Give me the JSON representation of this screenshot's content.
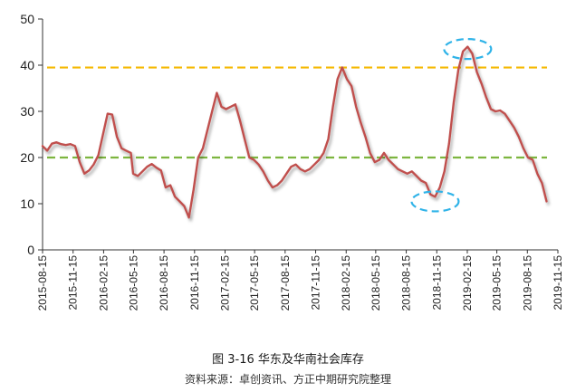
{
  "caption": {
    "title": "图 3-16 华东及华南社会库存",
    "source": "资料来源：卓创资讯、方正中期研究院整理"
  },
  "colors": {
    "series_line": "#c0504d",
    "ref_line_high": "#f5b800",
    "ref_line_low": "#7db53f",
    "highlight_ellipse": "#2fb3e8",
    "axis": "#333333"
  },
  "chart_data": {
    "type": "line",
    "title": "",
    "xlabel": "",
    "ylabel": "",
    "ylim": [
      0,
      50
    ],
    "y_ticks": [
      0,
      10,
      20,
      30,
      40,
      50
    ],
    "grid": false,
    "legend": "none",
    "x_tick_labels": [
      "2015-08-15",
      "2015-11-15",
      "2016-02-15",
      "2016-05-15",
      "2016-08-15",
      "2016-11-15",
      "2017-02-15",
      "2017-05-15",
      "2017-08-15",
      "2017-11-15",
      "2018-02-15",
      "2018-05-15",
      "2018-08-15",
      "2018-11-15",
      "2019-02-15",
      "2019-05-15",
      "2019-08-15",
      "2019-11-15"
    ],
    "x_start": "2015-08-15",
    "x_end": "2019-11-15",
    "series": [
      {
        "points": [
          [
            "2015-08-15",
            22.5
          ],
          [
            "2015-08-29",
            21.5
          ],
          [
            "2015-09-12",
            23.0
          ],
          [
            "2015-09-26",
            23.3
          ],
          [
            "2015-10-10",
            22.9
          ],
          [
            "2015-10-24",
            22.7
          ],
          [
            "2015-11-07",
            22.9
          ],
          [
            "2015-11-21",
            22.5
          ],
          [
            "2015-12-05",
            19.0
          ],
          [
            "2015-12-19",
            16.5
          ],
          [
            "2016-01-02",
            17.2
          ],
          [
            "2016-01-16",
            18.5
          ],
          [
            "2016-01-30",
            20.5
          ],
          [
            "2016-02-13",
            25.0
          ],
          [
            "2016-02-27",
            29.5
          ],
          [
            "2016-03-12",
            29.3
          ],
          [
            "2016-03-26",
            24.5
          ],
          [
            "2016-04-09",
            22.0
          ],
          [
            "2016-04-23",
            21.5
          ],
          [
            "2016-05-07",
            21.0
          ],
          [
            "2016-05-14",
            16.5
          ],
          [
            "2016-05-28",
            16.0
          ],
          [
            "2016-06-11",
            17.0
          ],
          [
            "2016-06-25",
            18.0
          ],
          [
            "2016-07-09",
            18.6
          ],
          [
            "2016-07-23",
            17.8
          ],
          [
            "2016-08-06",
            17.2
          ],
          [
            "2016-08-20",
            13.5
          ],
          [
            "2016-09-03",
            14.0
          ],
          [
            "2016-09-17",
            11.5
          ],
          [
            "2016-10-01",
            10.5
          ],
          [
            "2016-10-15",
            9.5
          ],
          [
            "2016-10-29",
            7.0
          ],
          [
            "2016-11-12",
            13.0
          ],
          [
            "2016-11-26",
            20.0
          ],
          [
            "2016-12-10",
            22.0
          ],
          [
            "2016-12-24",
            26.0
          ],
          [
            "2017-01-07",
            30.0
          ],
          [
            "2017-01-21",
            34.0
          ],
          [
            "2017-02-04",
            31.0
          ],
          [
            "2017-02-18",
            30.5
          ],
          [
            "2017-03-04",
            31.0
          ],
          [
            "2017-03-18",
            31.5
          ],
          [
            "2017-04-01",
            28.0
          ],
          [
            "2017-04-15",
            24.0
          ],
          [
            "2017-04-29",
            20.0
          ],
          [
            "2017-05-13",
            19.5
          ],
          [
            "2017-05-27",
            18.5
          ],
          [
            "2017-06-10",
            17.0
          ],
          [
            "2017-06-24",
            15.0
          ],
          [
            "2017-07-08",
            13.5
          ],
          [
            "2017-07-22",
            14.0
          ],
          [
            "2017-08-05",
            15.0
          ],
          [
            "2017-08-19",
            16.5
          ],
          [
            "2017-09-02",
            18.0
          ],
          [
            "2017-09-16",
            18.5
          ],
          [
            "2017-09-30",
            17.5
          ],
          [
            "2017-10-14",
            17.0
          ],
          [
            "2017-10-28",
            17.5
          ],
          [
            "2017-11-11",
            18.5
          ],
          [
            "2017-11-25",
            19.5
          ],
          [
            "2017-12-09",
            21.0
          ],
          [
            "2017-12-23",
            24.0
          ],
          [
            "2018-01-06",
            31.0
          ],
          [
            "2018-01-20",
            37.0
          ],
          [
            "2018-02-03",
            39.5
          ],
          [
            "2018-02-17",
            37.0
          ],
          [
            "2018-03-03",
            35.5
          ],
          [
            "2018-03-17",
            31.0
          ],
          [
            "2018-03-31",
            27.5
          ],
          [
            "2018-04-14",
            24.5
          ],
          [
            "2018-04-28",
            21.0
          ],
          [
            "2018-05-12",
            19.0
          ],
          [
            "2018-05-26",
            19.5
          ],
          [
            "2018-06-09",
            21.0
          ],
          [
            "2018-06-23",
            19.5
          ],
          [
            "2018-07-07",
            18.5
          ],
          [
            "2018-07-21",
            17.5
          ],
          [
            "2018-08-04",
            17.0
          ],
          [
            "2018-08-18",
            16.5
          ],
          [
            "2018-09-01",
            17.0
          ],
          [
            "2018-09-15",
            16.0
          ],
          [
            "2018-09-29",
            15.0
          ],
          [
            "2018-10-13",
            14.5
          ],
          [
            "2018-10-27",
            12.0
          ],
          [
            "2018-11-10",
            11.5
          ],
          [
            "2018-11-24",
            13.5
          ],
          [
            "2018-12-08",
            17.0
          ],
          [
            "2018-12-22",
            23.0
          ],
          [
            "2019-01-05",
            32.0
          ],
          [
            "2019-01-19",
            39.0
          ],
          [
            "2019-02-02",
            43.0
          ],
          [
            "2019-02-16",
            44.0
          ],
          [
            "2019-03-02",
            42.5
          ],
          [
            "2019-03-16",
            38.5
          ],
          [
            "2019-03-30",
            36.0
          ],
          [
            "2019-04-13",
            33.0
          ],
          [
            "2019-04-27",
            30.5
          ],
          [
            "2019-05-11",
            30.0
          ],
          [
            "2019-05-25",
            30.2
          ],
          [
            "2019-06-08",
            29.5
          ],
          [
            "2019-06-22",
            28.0
          ],
          [
            "2019-07-06",
            26.5
          ],
          [
            "2019-07-20",
            24.5
          ],
          [
            "2019-08-03",
            22.0
          ],
          [
            "2019-08-17",
            20.0
          ],
          [
            "2019-08-31",
            19.5
          ],
          [
            "2019-09-14",
            16.5
          ],
          [
            "2019-09-28",
            14.5
          ],
          [
            "2019-10-12",
            10.5
          ]
        ]
      }
    ],
    "reference_lines": [
      {
        "y": 39.5,
        "color": "#f5b800",
        "style": "dashed"
      },
      {
        "y": 20.0,
        "color": "#7db53f",
        "style": "dashed"
      }
    ],
    "highlights": [
      {
        "x": "2019-02-16",
        "y": 43.5,
        "shape": "ellipse",
        "color": "#2fb3e8",
        "style": "dashed"
      },
      {
        "x": "2018-11-10",
        "y": 10.5,
        "shape": "ellipse",
        "color": "#2fb3e8",
        "style": "dashed"
      }
    ]
  }
}
